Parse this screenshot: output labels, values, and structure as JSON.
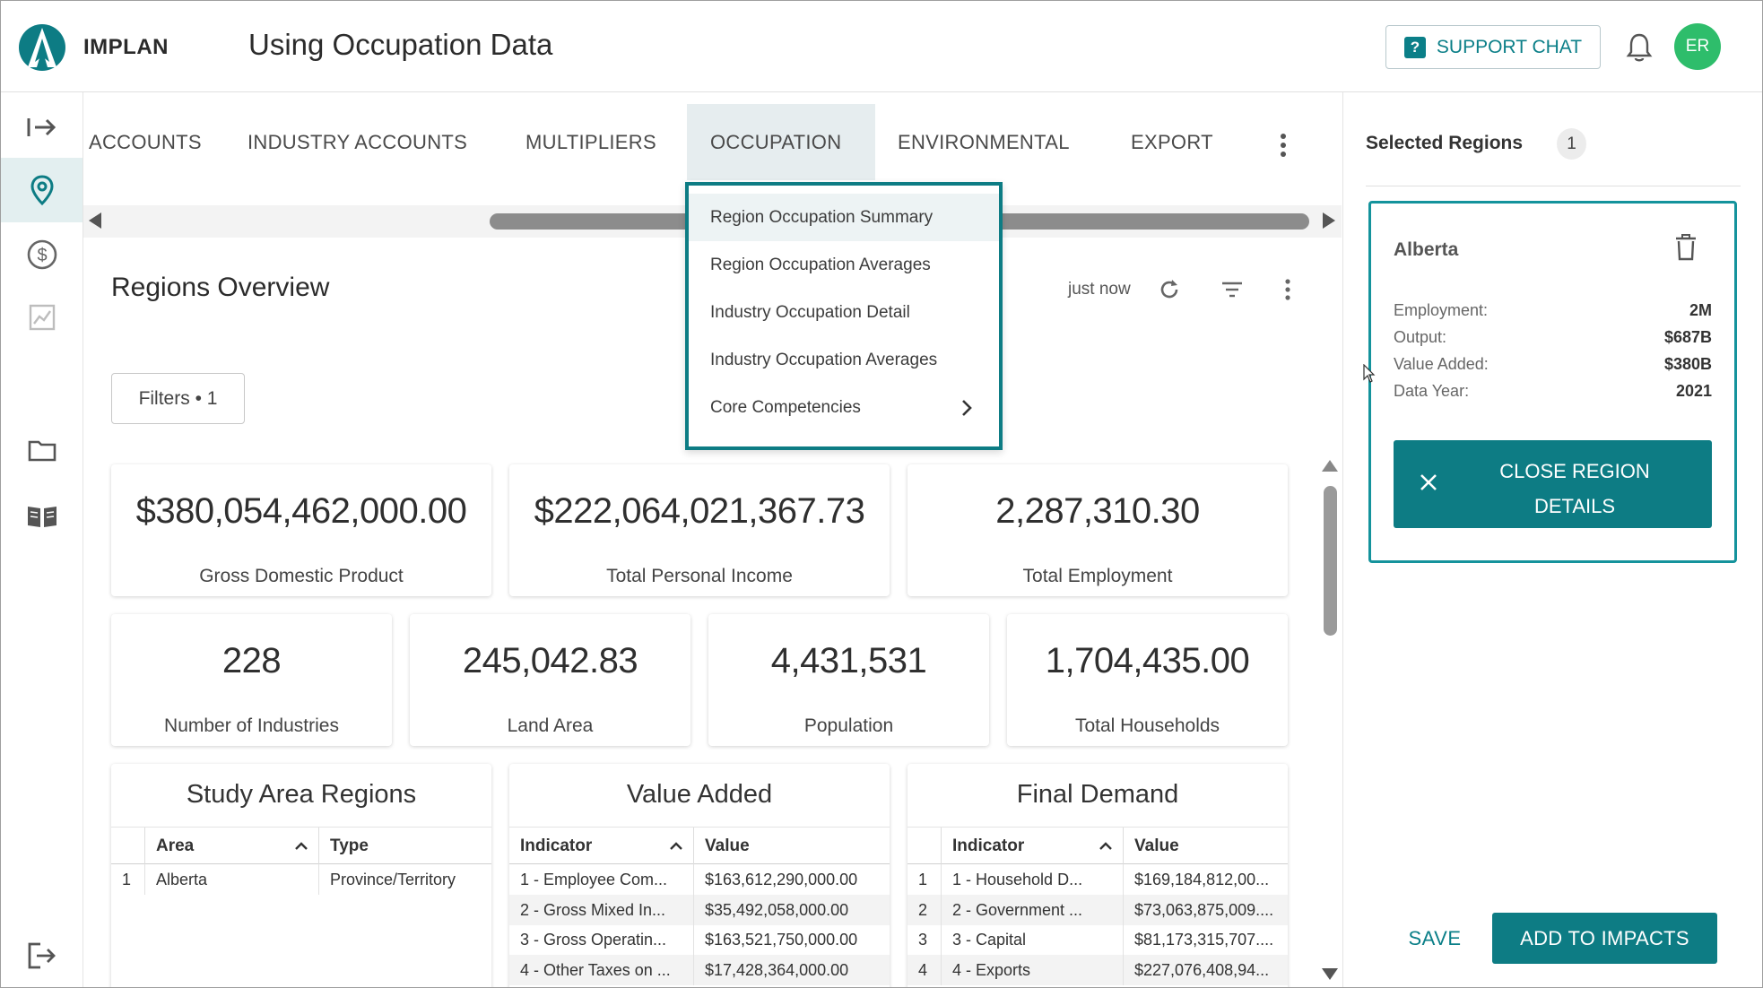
{
  "header": {
    "brand": "IMPLAN",
    "title": "Using Occupation Data",
    "support_label": "SUPPORT CHAT",
    "avatar_initials": "ER",
    "accent_color": "#0d7c84"
  },
  "rail": {
    "icons": [
      "expand-arrow-icon",
      "location-pin-icon",
      "dollar-icon",
      "chart-icon",
      "folder-icon",
      "book-icon",
      "logout-icon"
    ],
    "active": "location-pin-icon"
  },
  "tabs": {
    "items": [
      {
        "label": "ACCOUNTS"
      },
      {
        "label": "INDUSTRY ACCOUNTS"
      },
      {
        "label": "MULTIPLIERS"
      },
      {
        "label": "OCCUPATION"
      },
      {
        "label": "ENVIRONMENTAL"
      },
      {
        "label": "EXPORT"
      }
    ],
    "active": "OCCUPATION"
  },
  "occupation_menu": {
    "items": [
      {
        "label": "Region Occupation Summary"
      },
      {
        "label": "Region Occupation Averages"
      },
      {
        "label": "Industry Occupation Detail"
      },
      {
        "label": "Industry Occupation Averages"
      },
      {
        "label": "Core Competencies"
      }
    ]
  },
  "overview": {
    "title": "Regions Overview",
    "updated": "just now",
    "filters_label": "Filters • 1",
    "stats": [
      {
        "value": "$380,054,462,000.00",
        "label": "Gross Domestic Product"
      },
      {
        "value": "$222,064,021,367.73",
        "label": "Total Personal Income"
      },
      {
        "value": "2,287,310.30",
        "label": "Total Employment"
      },
      {
        "value": "228",
        "label": "Number of Industries"
      },
      {
        "value": "245,042.83",
        "label": "Land Area"
      },
      {
        "value": "4,431,531",
        "label": "Population"
      },
      {
        "value": "1,704,435.00",
        "label": "Total Households"
      }
    ]
  },
  "study_area": {
    "title": "Study Area Regions",
    "columns": [
      "Area",
      "Type"
    ],
    "rows": [
      {
        "num": "1",
        "area": "Alberta",
        "type": "Province/Territory"
      }
    ]
  },
  "value_added": {
    "title": "Value Added",
    "columns": [
      "Indicator",
      "Value"
    ],
    "rows": [
      {
        "indicator": "1 - Employee Com...",
        "value": "$163,612,290,000.00"
      },
      {
        "indicator": "2 - Gross Mixed In...",
        "value": "$35,492,058,000.00"
      },
      {
        "indicator": "3 - Gross Operatin...",
        "value": "$163,521,750,000.00"
      },
      {
        "indicator": "4 - Other Taxes on ...",
        "value": "$17,428,364,000.00"
      }
    ]
  },
  "final_demand": {
    "title": "Final Demand",
    "columns": [
      "Indicator",
      "Value"
    ],
    "rows": [
      {
        "num": "1",
        "indicator": "1 - Household D...",
        "value": "$169,184,812,00..."
      },
      {
        "num": "2",
        "indicator": "2 - Government ...",
        "value": "$73,063,875,009...."
      },
      {
        "num": "3",
        "indicator": "3 - Capital",
        "value": "$81,173,315,707...."
      },
      {
        "num": "4",
        "indicator": "4 - Exports",
        "value": "$227,076,408,94..."
      }
    ]
  },
  "selected_regions": {
    "title": "Selected Regions",
    "count": "1",
    "region": {
      "name": "Alberta",
      "details": [
        {
          "label": "Employment:",
          "value": "2M"
        },
        {
          "label": "Output:",
          "value": "$687B"
        },
        {
          "label": "Value Added:",
          "value": "$380B"
        },
        {
          "label": "Data Year:",
          "value": "2021"
        }
      ],
      "close_label": "CLOSE REGION DETAILS"
    },
    "save_label": "SAVE",
    "add_label": "ADD TO IMPACTS"
  }
}
